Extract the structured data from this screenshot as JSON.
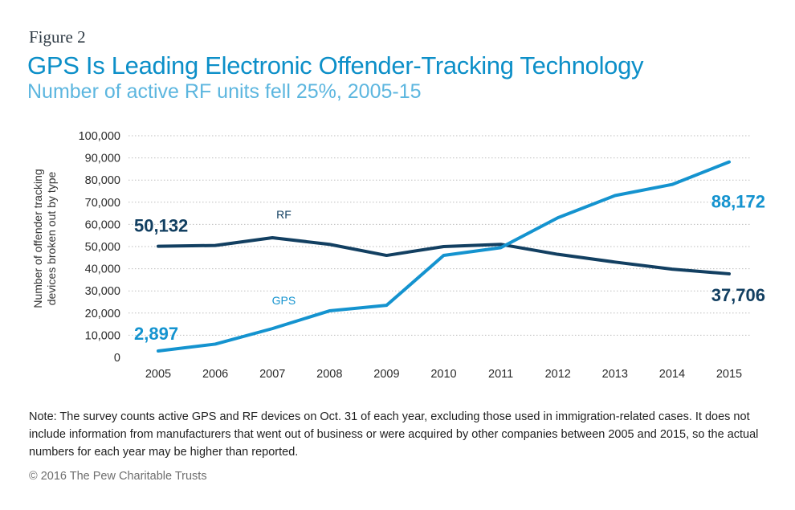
{
  "figure_label": "Figure 2",
  "title": "GPS Is Leading Electronic Offender-Tracking Technology",
  "subtitle": "Number of active RF units fell 25%, 2005-15",
  "note": "Note: The survey counts active GPS and RF devices on Oct. 31 of each year, excluding those used in immigration-related cases. It does not include information from manufacturers that went out of business or were acquired by other companies between 2005 and 2015, so the actual numbers for each year may be higher than reported.",
  "copyright": "© 2016 The Pew Charitable Trusts",
  "colors": {
    "rf": "#123f61",
    "gps": "#1493cf",
    "grid": "#bdbdbd"
  },
  "chart_data": {
    "type": "line",
    "title": "",
    "ylabel_lines": [
      "Number of offender tracking",
      "devices broken out by type"
    ],
    "xlabel": "",
    "ylim": [
      0,
      100000
    ],
    "yticks": [
      0,
      10000,
      20000,
      30000,
      40000,
      50000,
      60000,
      70000,
      80000,
      90000,
      100000
    ],
    "ytick_labels": [
      "0",
      "10,000",
      "20,000",
      "30,000",
      "40,000",
      "50,000",
      "60,000",
      "70,000",
      "80,000",
      "90,000",
      "100,000"
    ],
    "grid": "horizontal dotted",
    "x": [
      "2005",
      "2006",
      "2007",
      "2008",
      "2009",
      "2010",
      "2011",
      "2012",
      "2013",
      "2014",
      "2015"
    ],
    "series": [
      {
        "name": "RF",
        "color": "#123f61",
        "values": [
          50132,
          50500,
          54000,
          51000,
          46000,
          50000,
          51000,
          46500,
          43000,
          39800,
          37706
        ]
      },
      {
        "name": "GPS",
        "color": "#1493cf",
        "values": [
          2897,
          6000,
          13000,
          21000,
          23500,
          46000,
          49500,
          63000,
          73000,
          78000,
          88172
        ]
      }
    ],
    "annotations": [
      {
        "text": "50,132",
        "series": "RF",
        "x": "2005",
        "color": "#123f61"
      },
      {
        "text": "2,897",
        "series": "GPS",
        "x": "2005",
        "color": "#1493cf"
      },
      {
        "text": "88,172",
        "series": "GPS",
        "x": "2015",
        "color": "#1493cf"
      },
      {
        "text": "37,706",
        "series": "RF",
        "x": "2015",
        "color": "#123f61"
      }
    ]
  }
}
